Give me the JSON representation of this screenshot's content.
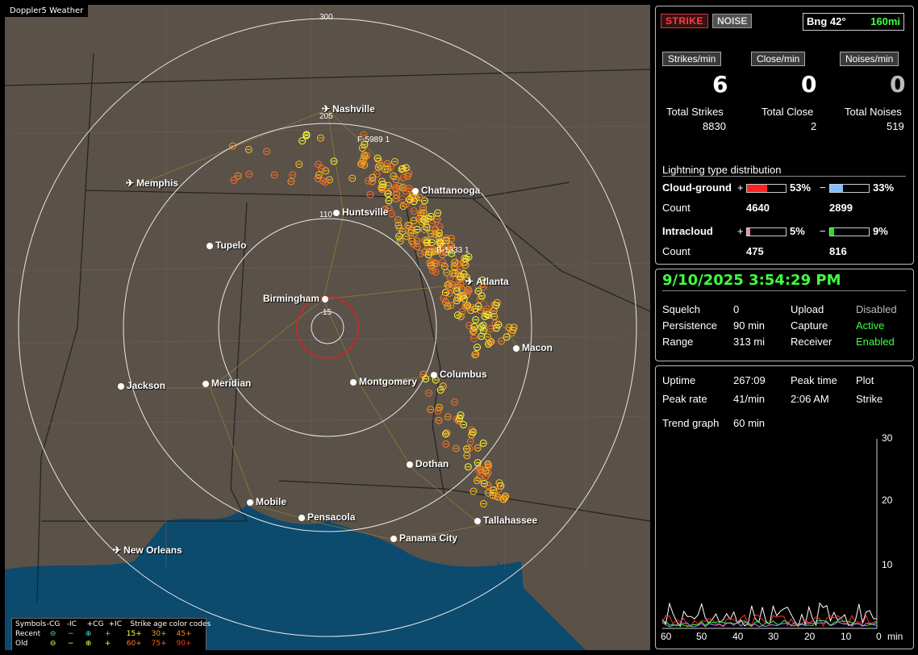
{
  "app": {
    "title": "Doppler5 Weather"
  },
  "map": {
    "ring_labels": [
      "300",
      "205",
      "110",
      "15"
    ],
    "markers": [
      "F-5989 1",
      "B-1333 1"
    ],
    "cities": [
      {
        "name": "Nashville",
        "type": "airport"
      },
      {
        "name": "Memphis",
        "type": "airport"
      },
      {
        "name": "Chattanooga",
        "type": "city"
      },
      {
        "name": "Huntsville",
        "type": "city"
      },
      {
        "name": "Tupelo",
        "type": "city"
      },
      {
        "name": "Birmingham",
        "type": "city"
      },
      {
        "name": "Atlanta",
        "type": "airport"
      },
      {
        "name": "Macon",
        "type": "city"
      },
      {
        "name": "Columbus",
        "type": "city"
      },
      {
        "name": "Jackson",
        "type": "airport"
      },
      {
        "name": "Meridian",
        "type": "city"
      },
      {
        "name": "Montgomery",
        "type": "city"
      },
      {
        "name": "Dothan",
        "type": "city"
      },
      {
        "name": "Mobile",
        "type": "city"
      },
      {
        "name": "Pensacola",
        "type": "city"
      },
      {
        "name": "Tallahassee",
        "type": "city"
      },
      {
        "name": "Panama City",
        "type": "city"
      },
      {
        "name": "New Orleans",
        "type": "airport"
      }
    ],
    "legend": {
      "headers": [
        "Symbols",
        "-CG",
        "-IC",
        "+CG",
        "+IC",
        "Strike age color codes"
      ],
      "recent_label": "Recent",
      "old_label": "Old",
      "recent_ages": [
        "15+",
        "30+",
        "45+"
      ],
      "old_ages": [
        "60+",
        "75+",
        "90+"
      ]
    }
  },
  "status": {
    "strike_btn": "STRIKE",
    "noise_btn": "NOISE",
    "bearing": "Bng 42°",
    "range": "160mi",
    "rates": [
      {
        "label": "Strikes/min",
        "value": "6"
      },
      {
        "label": "Close/min",
        "value": "0"
      },
      {
        "label": "Noises/min",
        "value": "0"
      }
    ],
    "totals": [
      {
        "label": "Total Strikes",
        "value": "8830"
      },
      {
        "label": "Total Close",
        "value": "2"
      },
      {
        "label": "Total Noises",
        "value": "519"
      }
    ],
    "dist_title": "Lightning type distribution",
    "cg": {
      "label": "Cloud-ground",
      "pos_pct": "53%",
      "neg_pct": "33%",
      "pos_count": "4640",
      "neg_count": "2899",
      "pos_frac": 0.53,
      "neg_frac": 0.33
    },
    "ic": {
      "label": "Intracloud",
      "pos_pct": "5%",
      "neg_pct": "9%",
      "pos_count": "475",
      "neg_count": "816",
      "pos_frac": 0.05,
      "neg_frac": 0.09
    },
    "count_label": "Count",
    "plus": "+",
    "minus": "−",
    "colors": {
      "cg_pos": "#ff2020",
      "cg_neg": "#80c0ff",
      "ic_pos": "#ff80c0",
      "ic_neg": "#20e020"
    }
  },
  "settings": {
    "timestamp": "9/10/2025 3:54:29 PM",
    "rows": [
      {
        "k1": "Squelch",
        "v1": "0",
        "k2": "Upload",
        "v2": "Disabled",
        "v2_status": "off"
      },
      {
        "k1": "Persistence",
        "v1": "90 min",
        "k2": "Capture",
        "v2": "Active",
        "v2_status": "on"
      },
      {
        "k1": "Range",
        "v1": "313 mi",
        "k2": "Receiver",
        "v2": "Enabled",
        "v2_status": "on"
      }
    ]
  },
  "stats": {
    "uptime_label": "Uptime",
    "uptime": "267:09",
    "peak_time_label": "Peak time",
    "peak_time": "2:06 AM",
    "plot_label": "Plot",
    "plot": "Strike",
    "peak_rate_label": "Peak rate",
    "peak_rate": "41/min",
    "trend_label": "Trend graph",
    "trend_value": "60 min",
    "x_ticks": [
      "60",
      "50",
      "40",
      "30",
      "20",
      "10",
      "0"
    ],
    "x_unit": "min",
    "y_ticks": [
      "30",
      "20",
      "10"
    ]
  }
}
